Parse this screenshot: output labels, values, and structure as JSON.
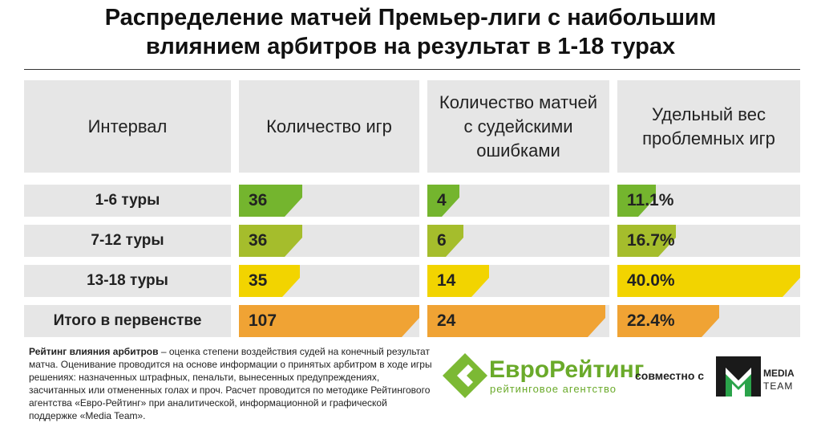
{
  "title": {
    "line1": "Распределение матчей Премьер-лиги с наибольшим",
    "line2": "влиянием арбитров на результат в 1-18 турах"
  },
  "table": {
    "header": [
      "Интервал",
      "Количество игр",
      "Количество матчей с судейскими ошибками",
      "Удельный вес проблемных игр"
    ],
    "rows": [
      [
        "1-6 туры",
        "36",
        "4",
        "11.1%"
      ],
      [
        "7-12 туры",
        "36",
        "6",
        "16.7%"
      ],
      [
        "13-18 туры",
        "35",
        "14",
        "40.0%"
      ],
      [
        "Итого в первенстве",
        "107",
        "24",
        "22.4%"
      ]
    ]
  },
  "footer": {
    "term": "Рейтинг влияния арбитров",
    "text": " – оценка степени воздействия судей на конечный результат матча. Оценивание проводится на основе информации о принятых арбитром в ходе игры решениях: назначенных штрафных, пенальти, вынесенных предупреждениях, засчитанных или отмененных голах и проч. Расчет проводится по методике Рейтингового агентства «Евро-Рейтинг» при аналитической, информационной и графической поддержке «Media Team»."
  },
  "logos": {
    "euro": "Евро",
    "rating": "Рейтинг",
    "tagline": "рейтинговое агентство",
    "together": "совместно с",
    "media": "MEDIA",
    "team": "TEAM"
  }
}
